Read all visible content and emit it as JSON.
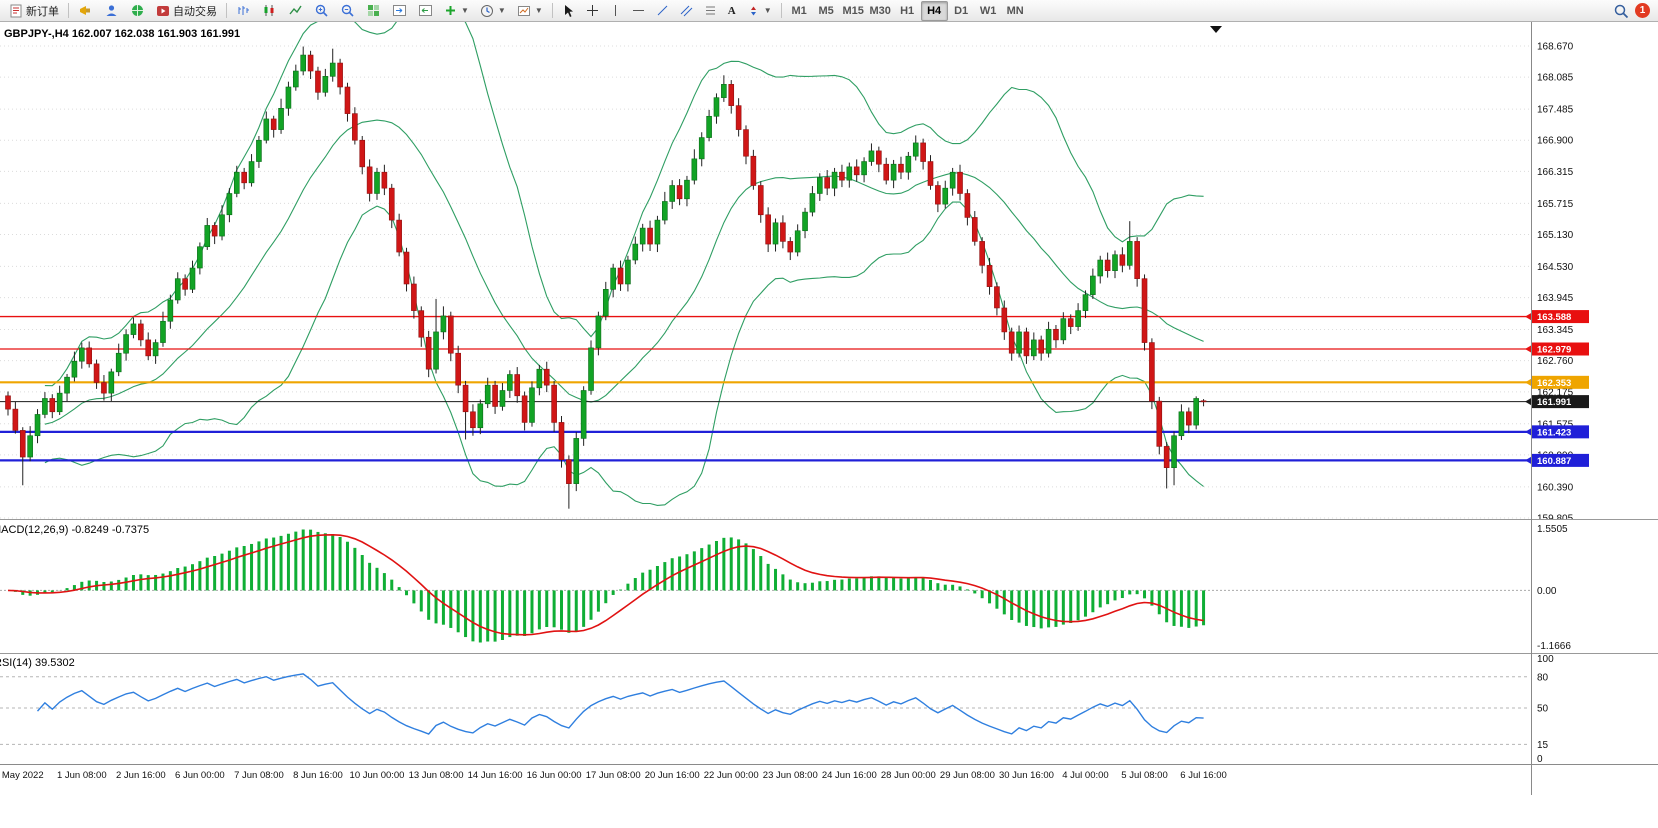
{
  "toolbar": {
    "new_order": "新订单",
    "auto_trading": "自动交易",
    "timeframes": [
      "M1",
      "M5",
      "M15",
      "M30",
      "H1",
      "H4",
      "D1",
      "W1",
      "MN"
    ],
    "active_timeframe": "H4",
    "notification_count": "1"
  },
  "chart": {
    "title": "GBPJPY-,H4 162.007 162.038 161.903 161.991",
    "symbol": "GBPJPY-",
    "period": "H4",
    "ohlc": {
      "open": "162.007",
      "high": "162.038",
      "low": "161.903",
      "close": "161.991"
    },
    "price_scale": [
      "168.670",
      "168.085",
      "167.485",
      "166.900",
      "166.315",
      "165.715",
      "165.130",
      "164.530",
      "163.945",
      "163.345",
      "162.760",
      "162.175",
      "161.575",
      "160.990",
      "160.390",
      "159.805"
    ],
    "levels": [
      {
        "price": 163.588,
        "label": "163.588",
        "color": "#e81010",
        "width": 1.3,
        "type": "resistance"
      },
      {
        "price": 162.979,
        "label": "162.979",
        "color": "#e81010",
        "width": 1.3,
        "type": "resistance"
      },
      {
        "price": 162.353,
        "label": "162.353",
        "color": "#efa500",
        "width": 2.2,
        "type": "pivot"
      },
      {
        "price": 161.423,
        "label": "161.423",
        "color": "#2020d8",
        "width": 2.2,
        "type": "support"
      },
      {
        "price": 160.887,
        "label": "160.887",
        "color": "#2020d8",
        "width": 2.2,
        "type": "support"
      }
    ],
    "current_price": {
      "value": 161.991,
      "label": "161.991",
      "color": "#1a1a1a"
    }
  },
  "macd": {
    "label": "MACD(12,26,9) -0.8249 -0.7375",
    "scale_top": "1.5505",
    "scale_zero": "0.00",
    "scale_bottom": "-1.1666",
    "histogram_color": "#0fae35",
    "signal_color": "#e01212",
    "last_main": -0.8249,
    "last_signal": -0.7375
  },
  "rsi": {
    "label": "RSI(14) 39.5302",
    "last_value": 39.5302,
    "scale": [
      "100",
      "80",
      "50",
      "15",
      "0"
    ],
    "levels": [
      80,
      50,
      15
    ],
    "line_color": "#2f7fdf"
  },
  "time_axis": {
    "labels": [
      {
        "text": "May 2022",
        "i": 2
      },
      {
        "text": "1 Jun 08:00",
        "i": 10
      },
      {
        "text": "2 Jun 16:00",
        "i": 18
      },
      {
        "text": "6 Jun 00:00",
        "i": 26
      },
      {
        "text": "7 Jun 08:00",
        "i": 34
      },
      {
        "text": "8 Jun 16:00",
        "i": 42
      },
      {
        "text": "10 Jun 00:00",
        "i": 50
      },
      {
        "text": "13 Jun 08:00",
        "i": 58
      },
      {
        "text": "14 Jun 16:00",
        "i": 66
      },
      {
        "text": "16 Jun 00:00",
        "i": 74
      },
      {
        "text": "17 Jun 08:00",
        "i": 82
      },
      {
        "text": "20 Jun 16:00",
        "i": 90
      },
      {
        "text": "22 Jun 00:00",
        "i": 98
      },
      {
        "text": "23 Jun 08:00",
        "i": 106
      },
      {
        "text": "24 Jun 16:00",
        "i": 114
      },
      {
        "text": "28 Jun 00:00",
        "i": 122
      },
      {
        "text": "29 Jun 08:00",
        "i": 130
      },
      {
        "text": "30 Jun 16:00",
        "i": 138
      },
      {
        "text": "4 Jul 00:00",
        "i": 146
      },
      {
        "text": "5 Jul 08:00",
        "i": 154
      },
      {
        "text": "6 Jul 16:00",
        "i": 162
      }
    ]
  },
  "chart_data": {
    "type": "candlestick",
    "symbol": "GBPJPY",
    "timeframe": "H4",
    "ylim": [
      159.805,
      168.67
    ],
    "up_color": "#12a325",
    "down_color": "#d01616",
    "bollinger": {
      "period": 20,
      "deviation": 2,
      "color": "#2f9e63"
    },
    "candles": [
      [
        162.1,
        162.18,
        161.73,
        161.85
      ],
      [
        161.85,
        161.99,
        161.39,
        161.45
      ],
      [
        161.45,
        161.51,
        160.42,
        160.95
      ],
      [
        160.95,
        161.53,
        160.87,
        161.35
      ],
      [
        161.35,
        161.85,
        161.21,
        161.75
      ],
      [
        161.75,
        162.17,
        161.68,
        162.05
      ],
      [
        162.05,
        162.13,
        161.68,
        161.8
      ],
      [
        161.8,
        162.29,
        161.74,
        162.15
      ],
      [
        162.15,
        162.51,
        162.0,
        162.45
      ],
      [
        162.45,
        162.93,
        162.37,
        162.75
      ],
      [
        162.75,
        163.1,
        162.61,
        163.0
      ],
      [
        163.0,
        163.12,
        162.63,
        162.7
      ],
      [
        162.7,
        162.78,
        162.23,
        162.35
      ],
      [
        162.35,
        162.49,
        162.01,
        162.15
      ],
      [
        162.15,
        162.61,
        162.0,
        162.55
      ],
      [
        162.55,
        163.08,
        162.47,
        162.9
      ],
      [
        162.9,
        163.35,
        162.76,
        163.25
      ],
      [
        163.25,
        163.57,
        163.18,
        163.45
      ],
      [
        163.45,
        163.53,
        163.03,
        163.15
      ],
      [
        163.15,
        163.29,
        162.77,
        162.85
      ],
      [
        162.85,
        163.16,
        162.7,
        163.1
      ],
      [
        163.1,
        163.68,
        163.02,
        163.5
      ],
      [
        163.5,
        164.0,
        163.36,
        163.9
      ],
      [
        163.9,
        164.42,
        163.83,
        164.3
      ],
      [
        164.3,
        164.38,
        163.98,
        164.1
      ],
      [
        164.1,
        164.64,
        164.03,
        164.5
      ],
      [
        164.5,
        164.98,
        164.38,
        164.9
      ],
      [
        164.9,
        165.44,
        164.84,
        165.3
      ],
      [
        165.3,
        165.36,
        164.95,
        165.1
      ],
      [
        165.1,
        165.68,
        165.02,
        165.5
      ],
      [
        165.5,
        166.0,
        165.36,
        165.9
      ],
      [
        165.9,
        166.42,
        165.83,
        166.3
      ],
      [
        166.3,
        166.38,
        165.98,
        166.1
      ],
      [
        166.1,
        166.64,
        166.03,
        166.5
      ],
      [
        166.5,
        166.98,
        166.38,
        166.9
      ],
      [
        166.9,
        167.44,
        166.84,
        167.3
      ],
      [
        167.3,
        167.36,
        166.95,
        167.1
      ],
      [
        167.1,
        167.68,
        167.02,
        167.5
      ],
      [
        167.5,
        168.0,
        167.36,
        167.9
      ],
      [
        167.9,
        168.32,
        167.83,
        168.2
      ],
      [
        168.2,
        168.66,
        168.12,
        168.5
      ],
      [
        168.5,
        168.58,
        168.05,
        168.2
      ],
      [
        168.2,
        168.28,
        167.66,
        167.8
      ],
      [
        167.8,
        168.24,
        167.72,
        168.1
      ],
      [
        168.1,
        168.62,
        168.0,
        168.35
      ],
      [
        168.35,
        168.43,
        167.76,
        167.9
      ],
      [
        167.9,
        167.98,
        167.25,
        167.4
      ],
      [
        167.4,
        167.52,
        166.82,
        166.9
      ],
      [
        166.9,
        166.98,
        166.26,
        166.4
      ],
      [
        166.4,
        166.54,
        165.75,
        165.9
      ],
      [
        165.9,
        166.38,
        165.78,
        166.3
      ],
      [
        166.3,
        166.44,
        165.87,
        166.0
      ],
      [
        166.0,
        166.08,
        165.25,
        165.4
      ],
      [
        165.4,
        165.52,
        164.72,
        164.8
      ],
      [
        164.8,
        164.88,
        164.06,
        164.2
      ],
      [
        164.2,
        164.34,
        163.55,
        163.7
      ],
      [
        163.7,
        163.78,
        163.02,
        163.2
      ],
      [
        163.2,
        163.32,
        162.45,
        162.6
      ],
      [
        162.6,
        163.92,
        162.52,
        163.3
      ],
      [
        163.3,
        163.78,
        163.16,
        163.6
      ],
      [
        163.6,
        163.68,
        162.75,
        162.9
      ],
      [
        162.9,
        163.04,
        162.15,
        162.3
      ],
      [
        162.3,
        162.38,
        161.28,
        161.8
      ],
      [
        161.8,
        161.94,
        161.35,
        161.5
      ],
      [
        161.5,
        162.03,
        161.38,
        161.95
      ],
      [
        161.95,
        162.44,
        161.87,
        162.3
      ],
      [
        162.3,
        162.38,
        161.76,
        161.9
      ],
      [
        161.9,
        162.34,
        161.82,
        162.2
      ],
      [
        162.2,
        162.58,
        162.06,
        162.5
      ],
      [
        162.5,
        162.64,
        161.97,
        162.1
      ],
      [
        162.1,
        162.18,
        161.45,
        161.6
      ],
      [
        161.6,
        162.37,
        161.52,
        162.25
      ],
      [
        162.25,
        162.68,
        162.11,
        162.6
      ],
      [
        162.6,
        162.74,
        162.17,
        162.3
      ],
      [
        162.3,
        162.38,
        161.42,
        161.6
      ],
      [
        161.6,
        161.72,
        160.75,
        160.9
      ],
      [
        160.9,
        160.98,
        159.98,
        160.45
      ],
      [
        160.45,
        161.42,
        160.31,
        161.3
      ],
      [
        161.3,
        162.28,
        161.16,
        162.2
      ],
      [
        162.2,
        163.14,
        162.12,
        163.0
      ],
      [
        163.0,
        163.68,
        162.86,
        163.6
      ],
      [
        163.6,
        164.24,
        163.52,
        164.1
      ],
      [
        164.1,
        164.58,
        163.95,
        164.5
      ],
      [
        164.5,
        164.64,
        164.07,
        164.2
      ],
      [
        164.2,
        164.73,
        164.06,
        164.65
      ],
      [
        164.65,
        165.09,
        164.57,
        164.95
      ],
      [
        164.95,
        165.33,
        164.81,
        165.25
      ],
      [
        165.25,
        165.39,
        164.82,
        164.95
      ],
      [
        164.95,
        165.48,
        164.8,
        165.4
      ],
      [
        165.4,
        165.93,
        165.32,
        165.75
      ],
      [
        165.75,
        166.15,
        165.61,
        166.05
      ],
      [
        166.05,
        166.17,
        165.68,
        165.8
      ],
      [
        165.8,
        166.23,
        165.66,
        166.15
      ],
      [
        166.15,
        166.73,
        166.07,
        166.55
      ],
      [
        166.55,
        167.05,
        166.41,
        166.95
      ],
      [
        166.95,
        167.47,
        166.88,
        167.35
      ],
      [
        167.35,
        167.78,
        167.21,
        167.7
      ],
      [
        167.7,
        168.12,
        167.62,
        167.95
      ],
      [
        167.95,
        168.03,
        167.4,
        167.55
      ],
      [
        167.55,
        167.69,
        166.97,
        167.1
      ],
      [
        167.1,
        167.18,
        166.45,
        166.6
      ],
      [
        166.6,
        166.72,
        165.97,
        166.05
      ],
      [
        166.05,
        166.13,
        165.35,
        165.5
      ],
      [
        165.5,
        165.64,
        164.8,
        164.95
      ],
      [
        164.95,
        165.43,
        164.81,
        165.35
      ],
      [
        165.35,
        165.49,
        164.87,
        165.0
      ],
      [
        165.0,
        165.08,
        164.65,
        164.8
      ],
      [
        164.8,
        165.32,
        164.72,
        165.2
      ],
      [
        165.2,
        165.63,
        165.06,
        165.55
      ],
      [
        165.55,
        166.04,
        165.47,
        165.9
      ],
      [
        165.9,
        166.28,
        165.76,
        166.2
      ],
      [
        166.2,
        166.34,
        165.87,
        166.0
      ],
      [
        166.0,
        166.38,
        165.85,
        166.3
      ],
      [
        166.3,
        166.44,
        166.02,
        166.15
      ],
      [
        166.15,
        166.48,
        166.01,
        166.4
      ],
      [
        166.4,
        166.54,
        166.12,
        166.25
      ],
      [
        166.25,
        166.58,
        166.11,
        166.5
      ],
      [
        166.5,
        166.84,
        166.42,
        166.7
      ],
      [
        166.7,
        166.78,
        166.3,
        166.45
      ],
      [
        166.45,
        166.57,
        166.07,
        166.15
      ],
      [
        166.15,
        166.53,
        166.0,
        166.45
      ],
      [
        166.45,
        166.59,
        166.17,
        166.3
      ],
      [
        166.3,
        166.68,
        166.16,
        166.6
      ],
      [
        166.6,
        166.99,
        166.52,
        166.85
      ],
      [
        166.85,
        166.93,
        166.35,
        166.5
      ],
      [
        166.5,
        166.62,
        165.97,
        166.05
      ],
      [
        166.05,
        166.13,
        165.55,
        165.7
      ],
      [
        165.7,
        166.14,
        165.62,
        166.0
      ],
      [
        166.0,
        166.38,
        165.86,
        166.3
      ],
      [
        166.3,
        166.44,
        165.77,
        165.9
      ],
      [
        165.9,
        165.98,
        165.3,
        165.45
      ],
      [
        165.45,
        165.57,
        164.92,
        165.0
      ],
      [
        165.0,
        165.08,
        164.4,
        164.55
      ],
      [
        164.55,
        164.69,
        164.0,
        164.15
      ],
      [
        164.15,
        164.23,
        163.61,
        163.75
      ],
      [
        163.75,
        163.89,
        163.15,
        163.3
      ],
      [
        163.3,
        163.38,
        162.76,
        162.9
      ],
      [
        162.9,
        163.42,
        162.82,
        163.3
      ],
      [
        163.3,
        163.38,
        162.7,
        162.85
      ],
      [
        162.85,
        163.29,
        162.77,
        163.15
      ],
      [
        163.15,
        163.23,
        162.76,
        162.9
      ],
      [
        162.9,
        163.49,
        162.82,
        163.35
      ],
      [
        163.35,
        163.43,
        163.0,
        163.15
      ],
      [
        163.15,
        163.67,
        163.07,
        163.55
      ],
      [
        163.55,
        163.63,
        163.26,
        163.4
      ],
      [
        163.4,
        163.84,
        163.32,
        163.7
      ],
      [
        163.7,
        164.08,
        163.56,
        164.0
      ],
      [
        164.0,
        164.49,
        163.92,
        164.35
      ],
      [
        164.35,
        164.73,
        164.21,
        164.65
      ],
      [
        164.65,
        164.79,
        164.32,
        164.45
      ],
      [
        164.45,
        164.83,
        164.31,
        164.75
      ],
      [
        164.75,
        164.89,
        164.42,
        164.55
      ],
      [
        164.55,
        165.38,
        164.47,
        165.0
      ],
      [
        165.0,
        165.08,
        164.15,
        164.3
      ],
      [
        164.3,
        164.38,
        162.95,
        163.1
      ],
      [
        163.1,
        163.18,
        161.85,
        162.0
      ],
      [
        162.0,
        162.08,
        161.0,
        161.15
      ],
      [
        161.15,
        161.23,
        160.36,
        160.75
      ],
      [
        160.75,
        161.43,
        160.42,
        161.35
      ],
      [
        161.35,
        161.94,
        161.27,
        161.8
      ],
      [
        161.8,
        161.88,
        161.4,
        161.55
      ],
      [
        161.55,
        162.09,
        161.47,
        162.05
      ],
      [
        162.007,
        162.038,
        161.903,
        161.991
      ]
    ]
  }
}
